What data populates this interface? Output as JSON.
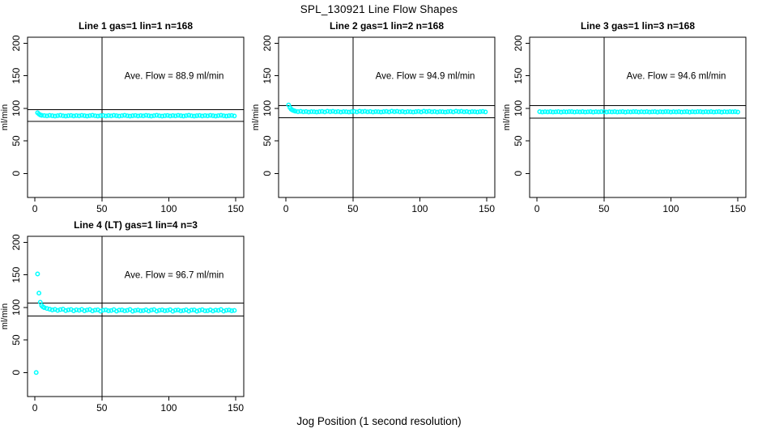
{
  "figure": {
    "title": "SPL_130921  Line Flow Shapes",
    "xlabel": "Jog Position (1 second resolution)",
    "ylabel": "ml/min"
  },
  "chart_data": {
    "type": "scatter",
    "title": "SPL_130921  Line Flow Shapes",
    "xlabel": "Jog Position (1 second resolution)",
    "ylabel": "ml/min",
    "marker": {
      "shape": "open-circle",
      "color": "#00FFFF"
    },
    "line_color": "#000000",
    "grid": false,
    "axis": {
      "xlim": [
        -5.5,
        156
      ],
      "ylim": [
        -37,
        209.3
      ],
      "xticks": [
        0,
        50,
        100,
        150
      ],
      "yticks": [
        0,
        50,
        100,
        150,
        200
      ]
    },
    "panels": [
      {
        "title": "Line 1 gas=1 lin=1 n=168",
        "n": 168,
        "ave_flow": 88.9,
        "annotation": "Ave. Flow =  88.9  ml/min",
        "annotation_pos": [
          104,
          150
        ],
        "vline_x": 50,
        "hlines": [
          97.8,
          80.0
        ],
        "series": {
          "prefix_points": [
            [
              2,
              93.2
            ],
            [
              3,
              91.2
            ],
            [
              4,
              89.9
            ],
            [
              5,
              89.3
            ]
          ],
          "x_start": 7,
          "x_step": 2,
          "values": [
            88.9,
            88.4,
            89.1,
            88.6,
            88.2,
            88.8,
            89.3,
            88.5,
            88.1,
            88.7,
            89.0,
            88.3,
            88.9,
            88.4,
            89.1,
            88.6,
            88.2,
            88.8,
            89.3,
            88.5,
            88.1,
            88.7,
            89.0,
            88.3,
            88.9,
            88.4,
            89.1,
            88.6,
            88.2,
            88.8,
            89.3,
            88.5,
            88.1,
            88.7,
            89.0,
            88.3,
            88.9,
            88.4,
            89.1,
            88.6,
            88.2,
            88.8,
            89.3,
            88.5,
            88.1,
            88.7,
            89.0,
            88.3,
            88.9,
            88.4,
            89.1,
            88.6,
            88.2,
            88.8,
            89.3,
            88.5,
            88.1,
            88.7,
            89.0,
            88.3,
            88.9,
            88.4,
            89.1,
            88.6,
            88.2,
            88.8,
            89.3,
            88.5,
            88.1,
            88.7,
            89.0,
            88.3
          ]
        }
      },
      {
        "title": "Line 2 gas=1 lin=2 n=168",
        "n": 168,
        "ave_flow": 94.9,
        "annotation": "Ave. Flow =  94.9  ml/min",
        "annotation_pos": [
          104,
          150
        ],
        "vline_x": 50,
        "hlines": [
          104.4,
          85.4
        ],
        "series": {
          "prefix_points": [
            [
              2,
              105.2
            ],
            [
              3,
              101.0
            ],
            [
              4,
              98.5
            ],
            [
              5,
              97.1
            ],
            [
              6,
              96.3
            ]
          ],
          "x_start": 7,
          "x_step": 2,
          "values": [
            95.6,
            94.9,
            95.3,
            94.6,
            95.1,
            94.4,
            95.0,
            94.7,
            94.3,
            94.9,
            95.2,
            94.5,
            95.6,
            94.9,
            95.3,
            94.6,
            95.1,
            94.4,
            95.0,
            94.7,
            94.3,
            94.9,
            95.2,
            94.5,
            95.6,
            94.9,
            95.3,
            94.6,
            95.1,
            94.4,
            95.0,
            94.7,
            94.3,
            94.9,
            95.2,
            94.5,
            95.6,
            94.9,
            95.3,
            94.6,
            95.1,
            94.4,
            95.0,
            94.7,
            94.3,
            94.9,
            95.2,
            94.5,
            95.6,
            94.9,
            95.3,
            94.6,
            95.1,
            94.4,
            95.0,
            94.7,
            94.3,
            94.9,
            95.2,
            94.5,
            95.6,
            94.9,
            95.3,
            94.6,
            95.1,
            94.4,
            95.0,
            94.7,
            94.3,
            94.9,
            95.2,
            94.5
          ]
        }
      },
      {
        "title": "Line 3 gas=1 lin=3 n=168",
        "n": 168,
        "ave_flow": 94.6,
        "annotation": "Ave. Flow =  94.6  ml/min",
        "annotation_pos": [
          104,
          150
        ],
        "vline_x": 50,
        "hlines": [
          104.1,
          85.1
        ],
        "series": {
          "prefix_points": [],
          "x_start": 2,
          "x_step": 2,
          "values": [
            94.8,
            94.4,
            94.7,
            94.5,
            94.9,
            94.3,
            94.6,
            94.8,
            94.2,
            94.7,
            94.5,
            94.9,
            94.8,
            94.4,
            94.7,
            94.5,
            94.9,
            94.3,
            94.6,
            94.8,
            94.2,
            94.7,
            94.5,
            94.9,
            94.8,
            94.4,
            94.7,
            94.5,
            94.9,
            94.3,
            94.6,
            94.8,
            94.2,
            94.7,
            94.5,
            94.9,
            94.8,
            94.4,
            94.7,
            94.5,
            94.9,
            94.3,
            94.6,
            94.8,
            94.2,
            94.7,
            94.5,
            94.9,
            94.8,
            94.4,
            94.7,
            94.5,
            94.9,
            94.3,
            94.6,
            94.8,
            94.2,
            94.7,
            94.5,
            94.9,
            94.8,
            94.4,
            94.7,
            94.5,
            94.9,
            94.3,
            94.6,
            94.8,
            94.2,
            94.7,
            94.5,
            94.9,
            94.6,
            94.8,
            94.4
          ]
        }
      },
      {
        "title": "Line 4 (LT) gas=1 lin=4 n=3",
        "n": 3,
        "ave_flow": 96.7,
        "annotation": "Ave. Flow =  96.7  ml/min",
        "annotation_pos": [
          104,
          150
        ],
        "vline_x": 50,
        "hlines": [
          106.4,
          87.0
        ],
        "series": {
          "prefix_points": [
            [
              1,
              0
            ],
            [
              2,
              151.5
            ],
            [
              3,
              122.0
            ],
            [
              4,
              108.0
            ],
            [
              5,
              103.0
            ],
            [
              6,
              100.8
            ],
            [
              7,
              99.6
            ]
          ],
          "x_start": 9,
          "x_step": 2,
          "values": [
            98.4,
            97.3,
            96.1,
            97.0,
            95.4,
            96.6,
            97.3,
            95.1,
            96.2,
            96.9,
            94.9,
            96.4,
            95.6,
            97.0,
            94.8,
            96.0,
            96.7,
            94.6,
            95.9,
            96.4,
            94.4,
            95.7,
            96.2,
            94.9,
            95.2,
            96.6,
            94.3,
            95.8,
            96.1,
            94.7,
            95.5,
            96.8,
            94.2,
            95.4,
            96.0,
            94.8,
            95.1,
            96.3,
            94.5,
            95.9,
            96.6,
            94.3,
            95.6,
            96.2,
            94.9,
            95.3,
            96.5,
            94.1,
            95.7,
            96.0,
            94.6,
            95.2,
            96.4,
            94.4,
            95.8,
            96.1,
            94.2,
            95.5,
            96.5,
            94.7,
            95.0,
            96.2,
            94.5,
            95.9,
            95.4,
            96.7,
            94.3,
            95.6,
            96.0,
            94.8,
            95.3
          ]
        }
      }
    ]
  }
}
